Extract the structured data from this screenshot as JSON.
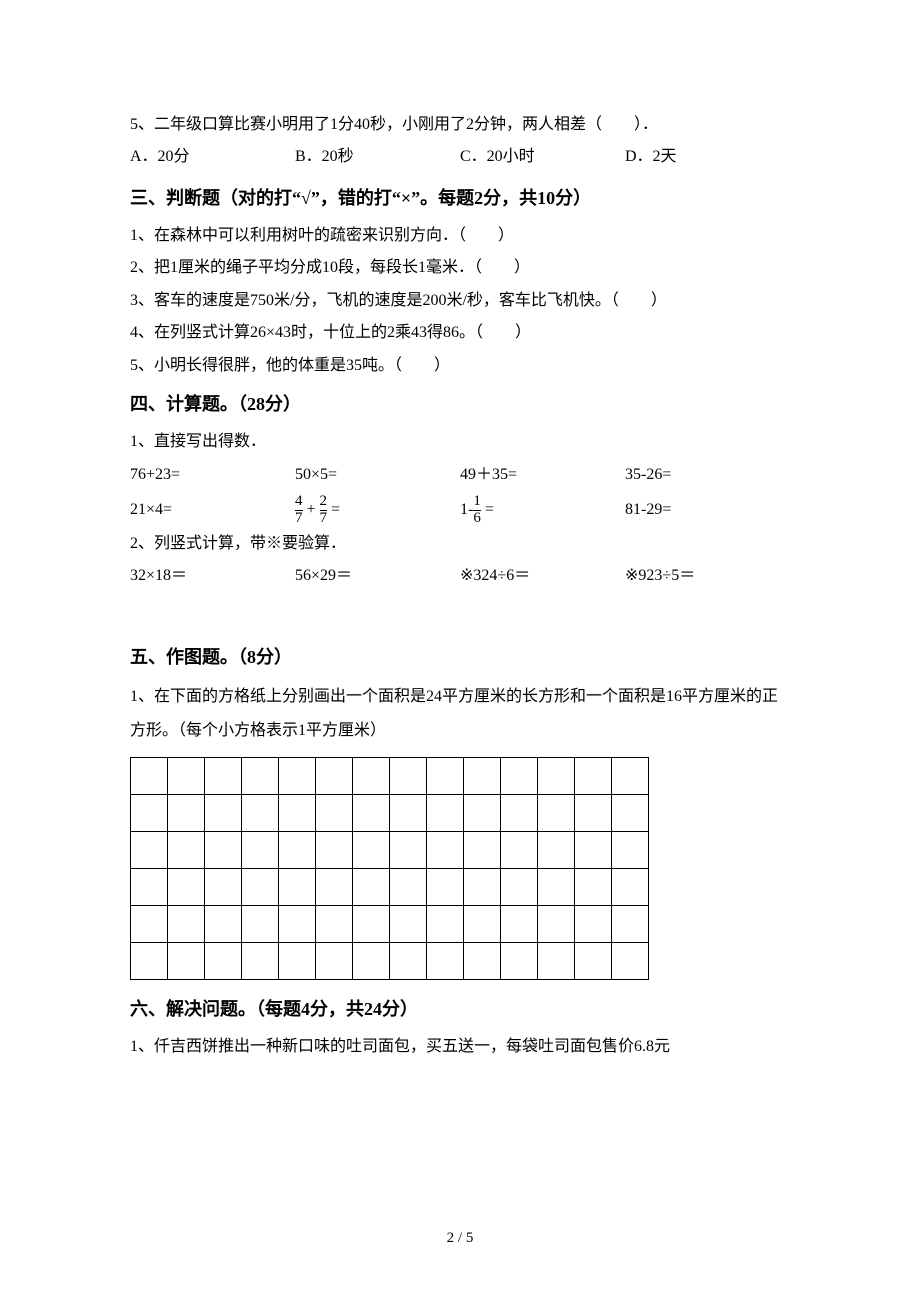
{
  "q5": {
    "text": "5、二年级口算比赛小明用了1分40秒，小刚用了2分钟，两人相差（　　）．",
    "a": "A．20分",
    "b": "B．20秒",
    "c": "C．20小时",
    "d": "D．2天"
  },
  "section3": {
    "heading": "三、判断题（对的打“√”，错的打“×”。每题2分，共10分）",
    "items": [
      "1、在森林中可以利用树叶的疏密来识别方向．（　　）",
      "2、把1厘米的绳子平均分成10段，每段长1毫米．（　　）",
      "3、客车的速度是750米/分，飞机的速度是200米/秒，客车比飞机快。（　　）",
      "4、在列竖式计算26×43时，十位上的2乘43得86。（　　）",
      "5、小明长得很胖，他的体重是35吨。（　　）"
    ]
  },
  "section4": {
    "heading": "四、计算题。（28分）",
    "sub1": "1、直接写出得数．",
    "row1": {
      "a": "76+23=",
      "b": "50×5=",
      "c": "49＋35=",
      "d": "35-26="
    },
    "row2": {
      "a": "21×4=",
      "b_num1": "4",
      "b_den1": "7",
      "b_num2": "2",
      "b_den2": "7",
      "c_prefix": "1-",
      "c_num": "1",
      "c_den": "6",
      "d": "81-29="
    },
    "sub2": "2、列竖式计算，带※要验算．",
    "row3": {
      "a": "32×18＝",
      "b": "56×29＝",
      "c": "※324÷6＝",
      "d": "※923÷5＝"
    }
  },
  "section5": {
    "heading": "五、作图题。（8分）",
    "q1": "1、在下面的方格纸上分别画出一个面积是24平方厘米的长方形和一个面积是16平方厘米的正方形。（每个小方格表示1平方厘米）"
  },
  "grid": {
    "rows": 6,
    "cols": 14
  },
  "section6": {
    "heading": "六、解决问题。（每题4分，共24分）",
    "q1": "1、仟吉西饼推出一种新口味的吐司面包，买五送一，每袋吐司面包售价6.8元"
  },
  "page_num": "2 / 5"
}
